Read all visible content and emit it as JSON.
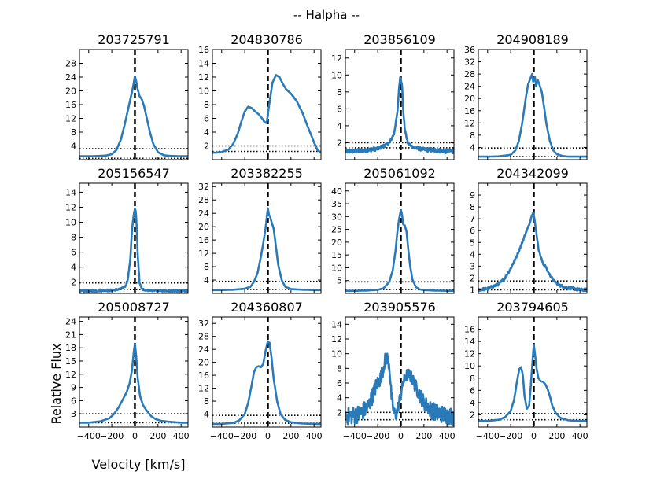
{
  "suptitle": "-- Halpha --",
  "xlabel": "Velocity [km/s]",
  "ylabel": "Relative Flux",
  "colors": {
    "line": "#2a7ab8",
    "axis": "#000000"
  },
  "chart_data": {
    "type": "line",
    "xlim": [
      -480,
      460
    ],
    "xticks": [
      -400,
      -200,
      0,
      200,
      400
    ],
    "xtick_labels": [
      "−400",
      "−200",
      "0",
      "200",
      "400"
    ],
    "panels": [
      {
        "title": "203725791",
        "ylim": [
          0,
          32
        ],
        "yticks": [
          4,
          8,
          12,
          16,
          20,
          24,
          28
        ],
        "hlines": [
          3.2,
          0.4
        ],
        "x": [
          -480,
          -400,
          -300,
          -250,
          -200,
          -160,
          -120,
          -90,
          -60,
          -40,
          -20,
          0,
          10,
          20,
          40,
          60,
          80,
          100,
          130,
          160,
          200,
          250,
          300,
          400,
          460
        ],
        "y": [
          1.0,
          1.0,
          1.1,
          1.2,
          1.6,
          2.8,
          6.0,
          10.0,
          14.5,
          17.5,
          20.5,
          24.2,
          23.0,
          21.0,
          18.5,
          17.5,
          15.5,
          12.5,
          8.0,
          4.5,
          2.2,
          1.3,
          1.1,
          1.0,
          1.0
        ]
      },
      {
        "title": "204830786",
        "ylim": [
          0,
          16
        ],
        "yticks": [
          2,
          4,
          6,
          8,
          10,
          12,
          14,
          16
        ],
        "hlines": [
          2.0,
          1.2
        ],
        "x": [
          -480,
          -400,
          -340,
          -300,
          -260,
          -230,
          -200,
          -170,
          -140,
          -110,
          -80,
          -50,
          -30,
          -10,
          10,
          40,
          70,
          100,
          130,
          160,
          200,
          250,
          300,
          350,
          400,
          430,
          460
        ],
        "y": [
          1.0,
          1.1,
          1.5,
          2.3,
          3.8,
          5.5,
          7.0,
          7.7,
          7.5,
          7.0,
          6.6,
          6.0,
          5.5,
          5.3,
          7.8,
          11.2,
          12.3,
          12.0,
          11.0,
          10.2,
          9.6,
          8.5,
          6.8,
          4.6,
          2.5,
          1.4,
          1.0
        ]
      },
      {
        "title": "203856109",
        "ylim": [
          0,
          13
        ],
        "yticks": [
          2,
          4,
          6,
          8,
          10,
          12
        ],
        "hlines": [
          2.0,
          1.4
        ],
        "x": [
          -480,
          -400,
          -300,
          -200,
          -150,
          -100,
          -60,
          -30,
          -15,
          -5,
          0,
          10,
          20,
          35,
          60,
          100,
          150,
          200,
          300,
          400,
          460
        ],
        "y": [
          1.0,
          1.0,
          1.1,
          1.3,
          1.6,
          2.0,
          3.0,
          5.5,
          8.5,
          9.8,
          9.5,
          9.0,
          6.0,
          3.5,
          2.0,
          1.5,
          1.3,
          1.2,
          1.1,
          1.0,
          1.0
        ],
        "noise": 0.25
      },
      {
        "title": "204908189",
        "ylim": [
          0,
          36
        ],
        "yticks": [
          4,
          8,
          12,
          16,
          20,
          24,
          28,
          32,
          36
        ],
        "hlines": [
          3.8,
          1.0
        ],
        "x": [
          -480,
          -400,
          -300,
          -200,
          -160,
          -130,
          -100,
          -70,
          -50,
          -30,
          -15,
          -5,
          10,
          20,
          35,
          50,
          70,
          90,
          110,
          140,
          170,
          200,
          250,
          300,
          400,
          460
        ],
        "y": [
          1.0,
          1.0,
          1.1,
          1.6,
          3.0,
          6.0,
          12.0,
          20.0,
          24.5,
          26.5,
          28.0,
          25.5,
          27.0,
          24.0,
          26.0,
          24.5,
          22.0,
          17.0,
          11.5,
          6.0,
          3.0,
          1.8,
          1.2,
          1.0,
          1.0,
          1.0
        ]
      },
      {
        "title": "205156547",
        "ylim": [
          0.5,
          15.2
        ],
        "yticks": [
          2,
          4,
          6,
          8,
          10,
          12,
          14
        ],
        "hlines": [
          1.9,
          1.0
        ],
        "x": [
          -480,
          -400,
          -300,
          -200,
          -120,
          -80,
          -60,
          -40,
          -25,
          -10,
          0,
          8,
          15,
          25,
          40,
          60,
          100,
          200,
          300,
          400,
          460
        ],
        "y": [
          0.8,
          0.8,
          0.9,
          0.9,
          1.1,
          1.5,
          2.5,
          5.0,
          9.0,
          11.0,
          11.8,
          11.5,
          9.5,
          5.5,
          2.0,
          1.1,
          0.9,
          0.9,
          0.8,
          0.8,
          0.8
        ],
        "noise": 0.15
      },
      {
        "title": "203382255",
        "ylim": [
          0,
          33
        ],
        "yticks": [
          4,
          8,
          12,
          16,
          20,
          24,
          28,
          32
        ],
        "hlines": [
          3.6,
          1.2
        ],
        "x": [
          -480,
          -400,
          -300,
          -200,
          -150,
          -120,
          -90,
          -60,
          -40,
          -20,
          0,
          10,
          20,
          35,
          50,
          70,
          90,
          120,
          150,
          200,
          300,
          400,
          460
        ],
        "y": [
          1.0,
          1.0,
          1.1,
          1.4,
          2.0,
          3.5,
          6.0,
          11.0,
          15.0,
          19.5,
          25.5,
          23.5,
          23.0,
          21.0,
          19.5,
          14.0,
          8.5,
          4.0,
          2.0,
          1.3,
          1.1,
          1.0,
          1.0
        ]
      },
      {
        "title": "205061092",
        "ylim": [
          0,
          43
        ],
        "yticks": [
          5,
          10,
          15,
          20,
          25,
          30,
          35,
          40
        ],
        "hlines": [
          4.5,
          1.5
        ],
        "x": [
          -480,
          -400,
          -300,
          -200,
          -150,
          -100,
          -70,
          -45,
          -30,
          -15,
          0,
          10,
          20,
          35,
          50,
          65,
          80,
          100,
          130,
          160,
          200,
          300,
          400,
          460
        ],
        "y": [
          1.0,
          1.0,
          1.1,
          1.4,
          2.0,
          4.5,
          9.0,
          17.0,
          24.0,
          29.0,
          32.5,
          31.0,
          27.0,
          26.5,
          24.0,
          17.0,
          11.0,
          5.5,
          2.5,
          1.6,
          1.3,
          1.1,
          1.0,
          1.0
        ]
      },
      {
        "title": "204342099",
        "ylim": [
          0.7,
          10.0
        ],
        "yticks": [
          1,
          2,
          3,
          4,
          5,
          6,
          7,
          8,
          9
        ],
        "hlines": [
          1.75,
          1.0
        ],
        "x": [
          -480,
          -400,
          -300,
          -250,
          -200,
          -150,
          -100,
          -70,
          -40,
          -20,
          -5,
          5,
          20,
          40,
          60,
          80,
          100,
          130,
          170,
          220,
          280,
          350,
          400,
          460
        ],
        "y": [
          1.0,
          1.1,
          1.5,
          2.0,
          2.8,
          3.8,
          5.0,
          5.8,
          6.5,
          7.2,
          7.6,
          7.0,
          6.0,
          4.5,
          3.8,
          3.2,
          3.0,
          2.4,
          1.8,
          1.4,
          1.2,
          1.1,
          1.0,
          1.0
        ],
        "noise": 0.12
      },
      {
        "title": "205008727",
        "ylim": [
          0,
          25
        ],
        "yticks": [
          3,
          6,
          9,
          12,
          15,
          18,
          21,
          24
        ],
        "hlines": [
          3.0,
          1.0
        ],
        "x": [
          -480,
          -400,
          -300,
          -220,
          -180,
          -140,
          -100,
          -70,
          -45,
          -25,
          -10,
          0,
          10,
          25,
          45,
          70,
          100,
          140,
          180,
          230,
          300,
          400,
          460
        ],
        "y": [
          1.0,
          1.0,
          1.3,
          2.0,
          3.0,
          4.5,
          6.5,
          8.0,
          10.0,
          13.0,
          17.0,
          18.8,
          16.5,
          11.0,
          7.0,
          5.0,
          3.8,
          2.5,
          1.8,
          1.4,
          1.2,
          1.0,
          1.0
        ]
      },
      {
        "title": "204360807",
        "ylim": [
          0,
          34
        ],
        "yticks": [
          4,
          8,
          12,
          16,
          20,
          24,
          28,
          32
        ],
        "hlines": [
          3.6,
          1.2
        ],
        "x": [
          -480,
          -400,
          -300,
          -250,
          -200,
          -170,
          -140,
          -120,
          -100,
          -80,
          -60,
          -40,
          -20,
          0,
          15,
          30,
          50,
          80,
          110,
          150,
          200,
          300,
          400,
          460
        ],
        "y": [
          1.0,
          1.0,
          1.3,
          2.0,
          4.0,
          7.5,
          13.0,
          17.0,
          18.5,
          18.8,
          18.5,
          19.5,
          23.5,
          26.5,
          26.0,
          22.0,
          15.0,
          8.0,
          4.0,
          2.2,
          1.5,
          1.1,
          1.0,
          1.0
        ]
      },
      {
        "title": "203905576",
        "ylim": [
          0,
          15
        ],
        "yticks": [
          2,
          4,
          6,
          8,
          10,
          12,
          14
        ],
        "hlines": [
          2.0,
          1.0
        ],
        "x": [
          -480,
          -400,
          -340,
          -300,
          -270,
          -240,
          -210,
          -180,
          -160,
          -140,
          -120,
          -100,
          -80,
          -60,
          -40,
          -20,
          0,
          20,
          40,
          60,
          80,
          100,
          130,
          160,
          200,
          250,
          300,
          350,
          400,
          460
        ],
        "y": [
          1.5,
          1.6,
          2.0,
          2.5,
          3.2,
          4.5,
          5.8,
          6.5,
          7.5,
          9.0,
          9.5,
          8.5,
          4.0,
          2.0,
          1.6,
          3.0,
          4.5,
          6.0,
          6.8,
          7.2,
          7.0,
          6.5,
          5.5,
          4.5,
          3.3,
          2.5,
          2.0,
          1.8,
          1.6,
          1.5
        ],
        "noise": 1.2
      },
      {
        "title": "203794605",
        "ylim": [
          0,
          18
        ],
        "yticks": [
          2,
          4,
          6,
          8,
          10,
          12,
          14,
          16
        ],
        "hlines": [
          2.2,
          1.2
        ],
        "x": [
          -480,
          -400,
          -300,
          -250,
          -200,
          -170,
          -145,
          -125,
          -110,
          -95,
          -80,
          -60,
          -40,
          -25,
          -10,
          0,
          10,
          25,
          40,
          60,
          80,
          100,
          120,
          140,
          160,
          190,
          230,
          300,
          400,
          460
        ],
        "y": [
          1.0,
          1.0,
          1.2,
          1.6,
          2.6,
          4.5,
          7.5,
          9.5,
          9.8,
          8.5,
          5.0,
          3.0,
          3.5,
          7.0,
          11.0,
          13.5,
          12.0,
          9.5,
          8.0,
          7.5,
          7.4,
          7.0,
          6.2,
          5.0,
          3.5,
          2.3,
          1.5,
          1.1,
          1.0,
          1.0
        ]
      }
    ]
  }
}
